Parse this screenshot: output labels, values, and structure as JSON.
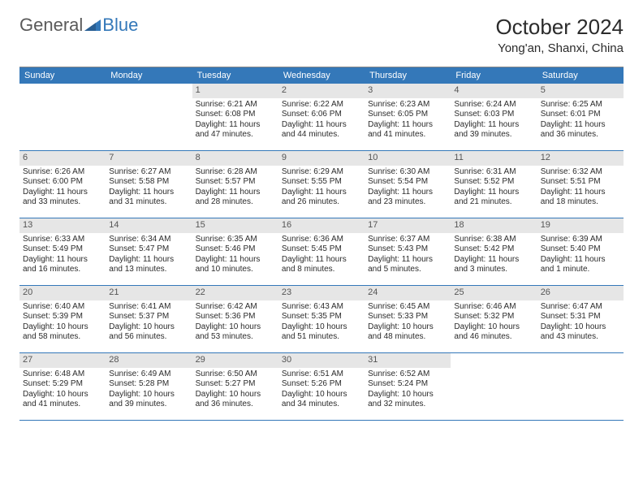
{
  "logo": {
    "general": "General",
    "blue": "Blue"
  },
  "title": "October 2024",
  "location": "Yong'an, Shanxi, China",
  "colors": {
    "header_bg": "#3478b9",
    "header_text": "#ffffff",
    "daynum_bg": "#e6e6e6",
    "row_border": "#3478b9",
    "body_text": "#2b2b2b"
  },
  "daysOfWeek": [
    "Sunday",
    "Monday",
    "Tuesday",
    "Wednesday",
    "Thursday",
    "Friday",
    "Saturday"
  ],
  "weeks": [
    [
      {
        "empty": true
      },
      {
        "empty": true
      },
      {
        "num": "1",
        "sunrise": "Sunrise: 6:21 AM",
        "sunset": "Sunset: 6:08 PM",
        "day1": "Daylight: 11 hours",
        "day2": "and 47 minutes."
      },
      {
        "num": "2",
        "sunrise": "Sunrise: 6:22 AM",
        "sunset": "Sunset: 6:06 PM",
        "day1": "Daylight: 11 hours",
        "day2": "and 44 minutes."
      },
      {
        "num": "3",
        "sunrise": "Sunrise: 6:23 AM",
        "sunset": "Sunset: 6:05 PM",
        "day1": "Daylight: 11 hours",
        "day2": "and 41 minutes."
      },
      {
        "num": "4",
        "sunrise": "Sunrise: 6:24 AM",
        "sunset": "Sunset: 6:03 PM",
        "day1": "Daylight: 11 hours",
        "day2": "and 39 minutes."
      },
      {
        "num": "5",
        "sunrise": "Sunrise: 6:25 AM",
        "sunset": "Sunset: 6:01 PM",
        "day1": "Daylight: 11 hours",
        "day2": "and 36 minutes."
      }
    ],
    [
      {
        "num": "6",
        "sunrise": "Sunrise: 6:26 AM",
        "sunset": "Sunset: 6:00 PM",
        "day1": "Daylight: 11 hours",
        "day2": "and 33 minutes."
      },
      {
        "num": "7",
        "sunrise": "Sunrise: 6:27 AM",
        "sunset": "Sunset: 5:58 PM",
        "day1": "Daylight: 11 hours",
        "day2": "and 31 minutes."
      },
      {
        "num": "8",
        "sunrise": "Sunrise: 6:28 AM",
        "sunset": "Sunset: 5:57 PM",
        "day1": "Daylight: 11 hours",
        "day2": "and 28 minutes."
      },
      {
        "num": "9",
        "sunrise": "Sunrise: 6:29 AM",
        "sunset": "Sunset: 5:55 PM",
        "day1": "Daylight: 11 hours",
        "day2": "and 26 minutes."
      },
      {
        "num": "10",
        "sunrise": "Sunrise: 6:30 AM",
        "sunset": "Sunset: 5:54 PM",
        "day1": "Daylight: 11 hours",
        "day2": "and 23 minutes."
      },
      {
        "num": "11",
        "sunrise": "Sunrise: 6:31 AM",
        "sunset": "Sunset: 5:52 PM",
        "day1": "Daylight: 11 hours",
        "day2": "and 21 minutes."
      },
      {
        "num": "12",
        "sunrise": "Sunrise: 6:32 AM",
        "sunset": "Sunset: 5:51 PM",
        "day1": "Daylight: 11 hours",
        "day2": "and 18 minutes."
      }
    ],
    [
      {
        "num": "13",
        "sunrise": "Sunrise: 6:33 AM",
        "sunset": "Sunset: 5:49 PM",
        "day1": "Daylight: 11 hours",
        "day2": "and 16 minutes."
      },
      {
        "num": "14",
        "sunrise": "Sunrise: 6:34 AM",
        "sunset": "Sunset: 5:47 PM",
        "day1": "Daylight: 11 hours",
        "day2": "and 13 minutes."
      },
      {
        "num": "15",
        "sunrise": "Sunrise: 6:35 AM",
        "sunset": "Sunset: 5:46 PM",
        "day1": "Daylight: 11 hours",
        "day2": "and 10 minutes."
      },
      {
        "num": "16",
        "sunrise": "Sunrise: 6:36 AM",
        "sunset": "Sunset: 5:45 PM",
        "day1": "Daylight: 11 hours",
        "day2": "and 8 minutes."
      },
      {
        "num": "17",
        "sunrise": "Sunrise: 6:37 AM",
        "sunset": "Sunset: 5:43 PM",
        "day1": "Daylight: 11 hours",
        "day2": "and 5 minutes."
      },
      {
        "num": "18",
        "sunrise": "Sunrise: 6:38 AM",
        "sunset": "Sunset: 5:42 PM",
        "day1": "Daylight: 11 hours",
        "day2": "and 3 minutes."
      },
      {
        "num": "19",
        "sunrise": "Sunrise: 6:39 AM",
        "sunset": "Sunset: 5:40 PM",
        "day1": "Daylight: 11 hours",
        "day2": "and 1 minute."
      }
    ],
    [
      {
        "num": "20",
        "sunrise": "Sunrise: 6:40 AM",
        "sunset": "Sunset: 5:39 PM",
        "day1": "Daylight: 10 hours",
        "day2": "and 58 minutes."
      },
      {
        "num": "21",
        "sunrise": "Sunrise: 6:41 AM",
        "sunset": "Sunset: 5:37 PM",
        "day1": "Daylight: 10 hours",
        "day2": "and 56 minutes."
      },
      {
        "num": "22",
        "sunrise": "Sunrise: 6:42 AM",
        "sunset": "Sunset: 5:36 PM",
        "day1": "Daylight: 10 hours",
        "day2": "and 53 minutes."
      },
      {
        "num": "23",
        "sunrise": "Sunrise: 6:43 AM",
        "sunset": "Sunset: 5:35 PM",
        "day1": "Daylight: 10 hours",
        "day2": "and 51 minutes."
      },
      {
        "num": "24",
        "sunrise": "Sunrise: 6:45 AM",
        "sunset": "Sunset: 5:33 PM",
        "day1": "Daylight: 10 hours",
        "day2": "and 48 minutes."
      },
      {
        "num": "25",
        "sunrise": "Sunrise: 6:46 AM",
        "sunset": "Sunset: 5:32 PM",
        "day1": "Daylight: 10 hours",
        "day2": "and 46 minutes."
      },
      {
        "num": "26",
        "sunrise": "Sunrise: 6:47 AM",
        "sunset": "Sunset: 5:31 PM",
        "day1": "Daylight: 10 hours",
        "day2": "and 43 minutes."
      }
    ],
    [
      {
        "num": "27",
        "sunrise": "Sunrise: 6:48 AM",
        "sunset": "Sunset: 5:29 PM",
        "day1": "Daylight: 10 hours",
        "day2": "and 41 minutes."
      },
      {
        "num": "28",
        "sunrise": "Sunrise: 6:49 AM",
        "sunset": "Sunset: 5:28 PM",
        "day1": "Daylight: 10 hours",
        "day2": "and 39 minutes."
      },
      {
        "num": "29",
        "sunrise": "Sunrise: 6:50 AM",
        "sunset": "Sunset: 5:27 PM",
        "day1": "Daylight: 10 hours",
        "day2": "and 36 minutes."
      },
      {
        "num": "30",
        "sunrise": "Sunrise: 6:51 AM",
        "sunset": "Sunset: 5:26 PM",
        "day1": "Daylight: 10 hours",
        "day2": "and 34 minutes."
      },
      {
        "num": "31",
        "sunrise": "Sunrise: 6:52 AM",
        "sunset": "Sunset: 5:24 PM",
        "day1": "Daylight: 10 hours",
        "day2": "and 32 minutes."
      },
      {
        "empty": true
      },
      {
        "empty": true
      }
    ]
  ]
}
